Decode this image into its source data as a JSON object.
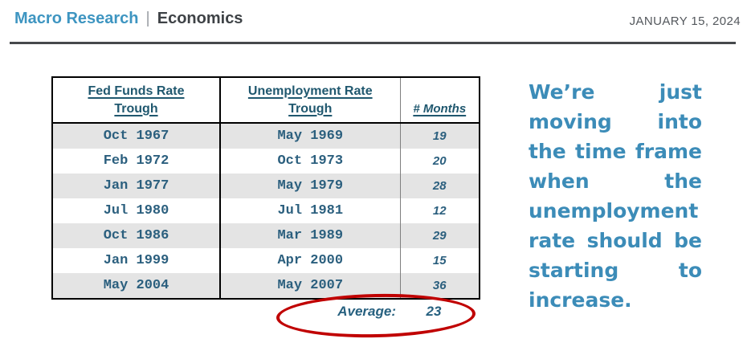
{
  "header": {
    "brand": "Macro Research",
    "separator": "|",
    "section": "Economics",
    "date": "JANUARY 15, 2024"
  },
  "table": {
    "columns": [
      {
        "line1": "Fed Funds Rate",
        "line2": "Trough"
      },
      {
        "line1": "Unemployment Rate",
        "line2": "Trough"
      },
      {
        "label": "# Months"
      }
    ],
    "rows": [
      {
        "fed_funds_trough": "Oct 1967",
        "unemployment_trough": "May 1969",
        "months": "19"
      },
      {
        "fed_funds_trough": "Feb 1972",
        "unemployment_trough": "Oct 1973",
        "months": "20"
      },
      {
        "fed_funds_trough": "Jan 1977",
        "unemployment_trough": "May 1979",
        "months": "28"
      },
      {
        "fed_funds_trough": "Jul 1980",
        "unemployment_trough": "Jul 1981",
        "months": "12"
      },
      {
        "fed_funds_trough": "Oct 1986",
        "unemployment_trough": "Mar 1989",
        "months": "29"
      },
      {
        "fed_funds_trough": "Jan 1999",
        "unemployment_trough": "Apr 2000",
        "months": "15"
      },
      {
        "fed_funds_trough": "May 2004",
        "unemployment_trough": "May 2007",
        "months": "36"
      }
    ],
    "average_label": "Average:",
    "average_value": "23"
  },
  "commentary": {
    "text": "We’re just moving into the time frame when the unemployment rate should be starting to increase.",
    "lines": [
      "We’re just",
      "moving into",
      "the time frame",
      "when the",
      "unemployment",
      "rate should be",
      "starting to",
      "increase."
    ]
  },
  "colors": {
    "brand_blue": "#3E95C1",
    "commentary_blue": "#3C8CB8",
    "table_text_teal": "#2B5F7E",
    "header_text_teal": "#20586F",
    "row_shade_gray": "#E4E4E4",
    "annotation_red": "#C00000"
  }
}
